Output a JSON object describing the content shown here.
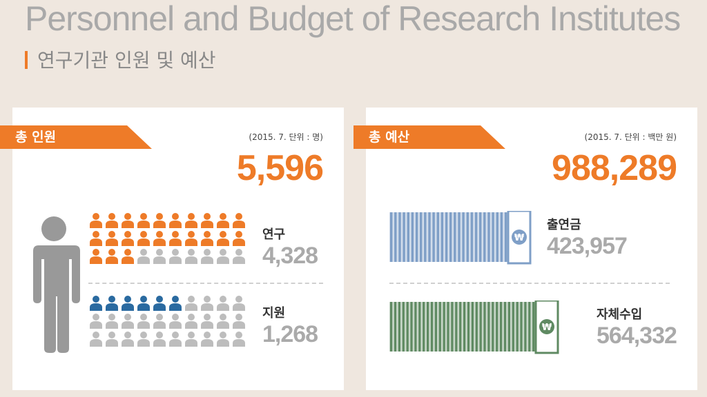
{
  "header": {
    "title": "Personnel and Budget of Research Institutes",
    "subtitle": "연구기관 인원 및 예산"
  },
  "personnel": {
    "tag": "총 인원",
    "unit": "(2015. 7. 단위 : 명)",
    "total": "5,596",
    "research": {
      "label": "연구",
      "value": "4,328",
      "filled": 23,
      "color": "#ee7b28"
    },
    "support": {
      "label": "지원",
      "value": "1,268",
      "filled": 6,
      "color": "#2a6aa0"
    },
    "empty_color": "#bdbdbd",
    "icon": "person-icon"
  },
  "budget": {
    "tag": "총 예산",
    "unit": "(2015. 7. 단위 : 백만 원)",
    "total": "988,289",
    "contribution": {
      "label": "출연금",
      "value": "423,957",
      "color": "#7f9fc7",
      "icon": "won-banknote-icon"
    },
    "own_revenue": {
      "label": "자체수입",
      "value": "564,332",
      "color": "#5f8a62",
      "icon": "won-banknote-icon"
    }
  },
  "colors": {
    "accent": "#ee7b28",
    "background": "#efe7df",
    "panel": "#ffffff"
  }
}
